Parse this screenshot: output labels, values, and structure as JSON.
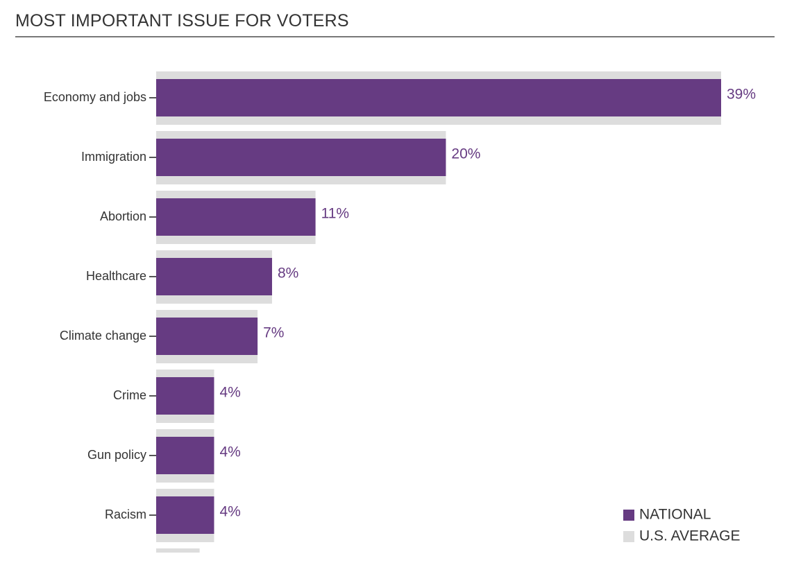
{
  "title": "MOST IMPORTANT ISSUE FOR VOTERS",
  "colors": {
    "national": "#663B82",
    "us_average": "#DDDDDD",
    "title": "#333333",
    "category_label": "#333333",
    "value_label": "#663B82"
  },
  "chart_data": {
    "type": "bar",
    "orientation": "horizontal",
    "title": "MOST IMPORTANT ISSUE FOR VOTERS",
    "xlabel": "",
    "ylabel": "",
    "grid": false,
    "legend_position": "bottom-right",
    "xlim": [
      0,
      39
    ],
    "categories": [
      "Economy and jobs",
      "Immigration",
      "Abortion",
      "Healthcare",
      "Climate change",
      "Crime",
      "Gun policy",
      "Racism",
      ""
    ],
    "series": [
      {
        "name": "NATIONAL",
        "color": "#663B82",
        "values": [
          39,
          20,
          11,
          8,
          7,
          4,
          4,
          4,
          null
        ],
        "labels": [
          "39%",
          "20%",
          "11%",
          "8%",
          "7%",
          "4%",
          "4%",
          "4%",
          ""
        ]
      },
      {
        "name": "U.S. AVERAGE",
        "color": "#DDDDDD",
        "values": [
          39,
          20,
          11,
          8,
          7,
          4,
          4,
          4,
          3
        ]
      }
    ]
  }
}
